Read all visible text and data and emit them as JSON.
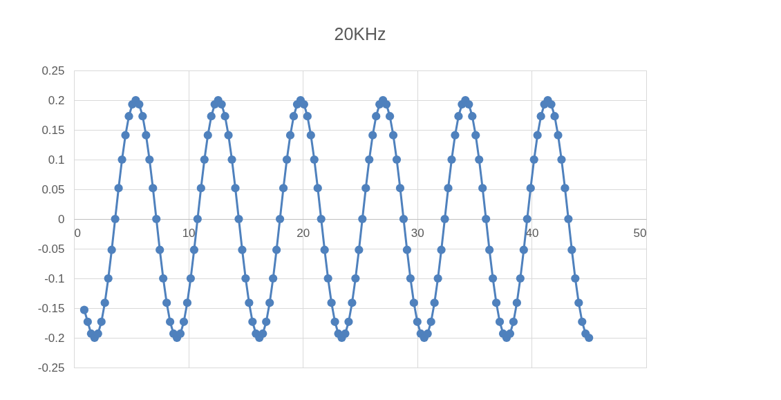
{
  "chart_data": {
    "type": "line",
    "title": "20KHz",
    "marker": "circle",
    "line_style": "solid",
    "grid": true,
    "xlim": [
      0,
      50
    ],
    "xticks": [
      0,
      10,
      20,
      30,
      40,
      50
    ],
    "ylim": [
      -0.25,
      0.25
    ],
    "yticks": [
      -0.25,
      -0.2,
      -0.15,
      -0.1,
      -0.05,
      0,
      0.05,
      0.1,
      0.15,
      0.2,
      0.25
    ],
    "x": [
      0.9,
      1.2,
      1.5,
      1.8,
      2.1,
      2.4,
      2.7,
      3.0,
      3.3,
      3.6,
      3.9,
      4.2,
      4.5,
      4.8,
      5.1,
      5.4,
      5.7,
      6.0,
      6.3,
      6.6,
      6.9,
      7.2,
      7.5,
      7.8,
      8.1,
      8.4,
      8.7,
      9.0,
      9.3,
      9.6,
      9.9,
      10.2,
      10.5,
      10.8,
      11.1,
      11.4,
      11.7,
      12.0,
      12.3,
      12.6,
      12.9,
      13.2,
      13.5,
      13.8,
      14.1,
      14.4,
      14.7,
      15.0,
      15.3,
      15.6,
      15.9,
      16.2,
      16.5,
      16.8,
      17.1,
      17.4,
      17.7,
      18.0,
      18.3,
      18.6,
      18.9,
      19.2,
      19.5,
      19.8,
      20.1,
      20.4,
      20.7,
      21.0,
      21.3,
      21.6,
      21.9,
      22.2,
      22.5,
      22.8,
      23.1,
      23.4,
      23.7,
      24.0,
      24.3,
      24.6,
      24.9,
      25.2,
      25.5,
      25.8,
      26.1,
      26.4,
      26.7,
      27.0,
      27.3,
      27.6,
      27.9,
      28.2,
      28.5,
      28.8,
      29.1,
      29.4,
      29.7,
      30.0,
      30.3,
      30.6,
      30.9,
      31.2,
      31.5,
      31.8,
      32.1,
      32.4,
      32.7,
      33.0,
      33.3,
      33.6,
      33.9,
      34.2,
      34.5,
      34.8,
      35.1,
      35.4,
      35.7,
      36.0,
      36.3,
      36.6,
      36.9,
      37.2,
      37.5,
      37.8,
      38.1,
      38.4,
      38.7,
      39.0,
      39.3,
      39.6,
      39.9,
      40.2,
      40.5,
      40.8,
      41.1,
      41.4,
      41.7,
      42.0,
      42.3,
      42.6,
      42.9,
      43.2,
      43.5,
      43.8,
      44.1,
      44.4,
      44.7,
      45.0
    ],
    "series": [
      {
        "color": "#4f81bd",
        "values": [
          -0.153,
          -0.173,
          -0.193,
          -0.2,
          -0.193,
          -0.173,
          -0.141,
          -0.1,
          -0.052,
          0,
          0.052,
          0.1,
          0.141,
          0.173,
          0.193,
          0.2,
          0.193,
          0.173,
          0.141,
          0.1,
          0.052,
          0,
          -0.052,
          -0.1,
          -0.141,
          -0.173,
          -0.193,
          -0.2,
          -0.193,
          -0.173,
          -0.141,
          -0.1,
          -0.052,
          0,
          0.052,
          0.1,
          0.141,
          0.173,
          0.193,
          0.2,
          0.193,
          0.173,
          0.141,
          0.1,
          0.052,
          0,
          -0.052,
          -0.1,
          -0.141,
          -0.173,
          -0.193,
          -0.2,
          -0.193,
          -0.173,
          -0.141,
          -0.1,
          -0.052,
          0,
          0.052,
          0.1,
          0.141,
          0.173,
          0.193,
          0.2,
          0.193,
          0.173,
          0.141,
          0.1,
          0.052,
          0,
          -0.052,
          -0.1,
          -0.141,
          -0.173,
          -0.193,
          -0.2,
          -0.193,
          -0.173,
          -0.141,
          -0.1,
          -0.052,
          0,
          0.052,
          0.1,
          0.141,
          0.173,
          0.193,
          0.2,
          0.193,
          0.173,
          0.141,
          0.1,
          0.052,
          0,
          -0.052,
          -0.1,
          -0.141,
          -0.173,
          -0.193,
          -0.2,
          -0.193,
          -0.173,
          -0.141,
          -0.1,
          -0.052,
          0,
          0.052,
          0.1,
          0.141,
          0.173,
          0.193,
          0.2,
          0.193,
          0.173,
          0.141,
          0.1,
          0.052,
          0,
          -0.052,
          -0.1,
          -0.141,
          -0.173,
          -0.193,
          -0.2,
          -0.193,
          -0.173,
          -0.141,
          -0.1,
          -0.052,
          0,
          0.052,
          0.1,
          0.141,
          0.173,
          0.193,
          0.2,
          0.193,
          0.173,
          0.141,
          0.1,
          0.052,
          0,
          -0.052,
          -0.1,
          -0.141,
          -0.173,
          -0.193,
          -0.2
        ]
      }
    ]
  }
}
